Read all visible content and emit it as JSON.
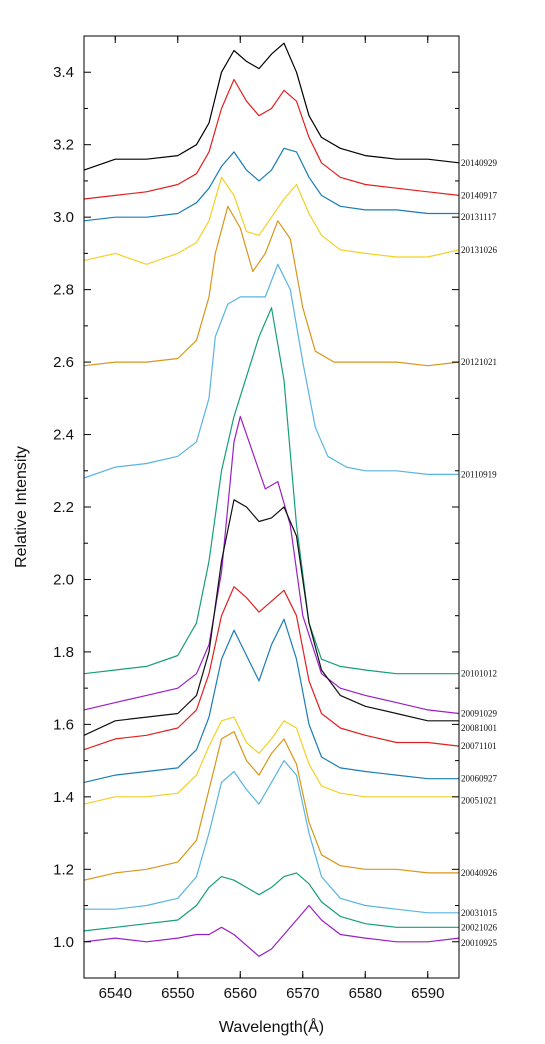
{
  "chart_data": {
    "type": "line",
    "title": "",
    "xlabel": "Wavelength(Å)",
    "ylabel": "Relative Intensity",
    "xlim": [
      6535,
      6595
    ],
    "ylim": [
      0.9,
      3.5
    ],
    "xticks": [
      6540,
      6550,
      6560,
      6570,
      6580,
      6590
    ],
    "yticks": [
      1.0,
      1.2,
      1.4,
      1.6,
      1.8,
      2.0,
      2.2,
      2.4,
      2.6,
      2.8,
      3.0,
      3.2,
      3.4
    ],
    "xtick_labels": [
      "6540",
      "6550",
      "6560",
      "6570",
      "6580",
      "6590"
    ],
    "ytick_labels": [
      "1.0",
      "1.2",
      "1.4",
      "1.6",
      "1.8",
      "2.0",
      "2.2",
      "2.4",
      "2.6",
      "2.8",
      "3.0",
      "3.2",
      "3.4"
    ],
    "grid": false,
    "legend": "none (series labelled at right edge)",
    "series": [
      {
        "name": "20140929",
        "color": "#000000",
        "labelY": 3.15,
        "x": [
          6535,
          6540,
          6545,
          6550,
          6553,
          6555,
          6557,
          6559,
          6561,
          6563,
          6565,
          6567,
          6569,
          6571,
          6573,
          6576,
          6580,
          6585,
          6590,
          6595
        ],
        "y": [
          3.13,
          3.16,
          3.16,
          3.17,
          3.2,
          3.26,
          3.4,
          3.46,
          3.43,
          3.41,
          3.45,
          3.48,
          3.4,
          3.28,
          3.22,
          3.19,
          3.17,
          3.16,
          3.16,
          3.15
        ]
      },
      {
        "name": "20140917",
        "color": "#e02020",
        "labelY": 3.06,
        "x": [
          6535,
          6540,
          6545,
          6550,
          6553,
          6555,
          6557,
          6559,
          6561,
          6563,
          6565,
          6567,
          6569,
          6571,
          6573,
          6576,
          6580,
          6585,
          6590,
          6595
        ],
        "y": [
          3.05,
          3.06,
          3.07,
          3.09,
          3.12,
          3.18,
          3.3,
          3.38,
          3.32,
          3.28,
          3.3,
          3.35,
          3.32,
          3.22,
          3.15,
          3.11,
          3.09,
          3.08,
          3.07,
          3.06
        ]
      },
      {
        "name": "20131117",
        "color": "#1a7db5",
        "labelY": 3.0,
        "x": [
          6535,
          6540,
          6545,
          6550,
          6553,
          6555,
          6557,
          6559,
          6561,
          6563,
          6565,
          6567,
          6569,
          6571,
          6573,
          6576,
          6580,
          6585,
          6590,
          6595
        ],
        "y": [
          2.99,
          3.0,
          3.0,
          3.01,
          3.04,
          3.08,
          3.14,
          3.18,
          3.13,
          3.1,
          3.13,
          3.19,
          3.18,
          3.11,
          3.06,
          3.03,
          3.02,
          3.02,
          3.01,
          3.01
        ]
      },
      {
        "name": "20131026",
        "color": "#f2d024",
        "labelY": 2.91,
        "x": [
          6535,
          6540,
          6545,
          6550,
          6553,
          6555,
          6557,
          6559,
          6561,
          6563,
          6565,
          6567,
          6569,
          6571,
          6573,
          6576,
          6580,
          6585,
          6590,
          6595
        ],
        "y": [
          2.88,
          2.9,
          2.87,
          2.9,
          2.93,
          2.99,
          3.11,
          3.06,
          2.96,
          2.95,
          3.0,
          3.05,
          3.09,
          3.01,
          2.95,
          2.91,
          2.9,
          2.89,
          2.89,
          2.91
        ]
      },
      {
        "name": "20121021",
        "color": "#d9961a",
        "labelY": 2.6,
        "x": [
          6535,
          6540,
          6545,
          6550,
          6553,
          6555,
          6556,
          6558,
          6560,
          6562,
          6564,
          6566,
          6568,
          6570,
          6572,
          6575,
          6580,
          6585,
          6590,
          6595
        ],
        "y": [
          2.59,
          2.6,
          2.6,
          2.61,
          2.66,
          2.78,
          2.9,
          3.03,
          2.97,
          2.85,
          2.9,
          2.99,
          2.94,
          2.75,
          2.63,
          2.6,
          2.6,
          2.6,
          2.59,
          2.6
        ]
      },
      {
        "name": "20110919",
        "color": "#5ab4e0",
        "labelY": 2.29,
        "x": [
          6535,
          6540,
          6545,
          6550,
          6553,
          6555,
          6556,
          6558,
          6560,
          6562,
          6564,
          6566,
          6568,
          6570,
          6572,
          6574,
          6577,
          6580,
          6585,
          6590,
          6595
        ],
        "y": [
          2.28,
          2.31,
          2.32,
          2.34,
          2.38,
          2.5,
          2.67,
          2.76,
          2.78,
          2.78,
          2.78,
          2.87,
          2.8,
          2.6,
          2.42,
          2.34,
          2.31,
          2.3,
          2.3,
          2.29,
          2.29
        ]
      },
      {
        "name": "20101012",
        "color": "#169e7a",
        "labelY": 1.74,
        "x": [
          6535,
          6540,
          6545,
          6550,
          6553,
          6555,
          6557,
          6559,
          6561,
          6563,
          6565,
          6567,
          6569,
          6571,
          6573,
          6576,
          6580,
          6585,
          6590,
          6595
        ],
        "y": [
          1.74,
          1.75,
          1.76,
          1.79,
          1.88,
          2.05,
          2.3,
          2.45,
          2.56,
          2.67,
          2.75,
          2.55,
          2.15,
          1.88,
          1.78,
          1.76,
          1.75,
          1.74,
          1.74,
          1.74
        ]
      },
      {
        "name": "20091029",
        "color": "#9b1fc4",
        "labelY": 1.63,
        "x": [
          6535,
          6540,
          6545,
          6550,
          6553,
          6555,
          6557,
          6558,
          6559,
          6560,
          6562,
          6564,
          6566,
          6568,
          6570,
          6573,
          6576,
          6580,
          6585,
          6590,
          6595
        ],
        "y": [
          1.64,
          1.66,
          1.68,
          1.7,
          1.74,
          1.82,
          2.02,
          2.2,
          2.38,
          2.45,
          2.35,
          2.25,
          2.27,
          2.15,
          1.9,
          1.74,
          1.7,
          1.68,
          1.66,
          1.64,
          1.63
        ]
      },
      {
        "name": "20081001",
        "color": "#111111",
        "labelY": 1.59,
        "x": [
          6535,
          6540,
          6545,
          6550,
          6553,
          6555,
          6557,
          6559,
          6561,
          6563,
          6565,
          6567,
          6569,
          6571,
          6573,
          6576,
          6580,
          6585,
          6590,
          6595
        ],
        "y": [
          1.57,
          1.61,
          1.62,
          1.63,
          1.68,
          1.8,
          2.05,
          2.22,
          2.2,
          2.16,
          2.17,
          2.2,
          2.12,
          1.88,
          1.75,
          1.68,
          1.65,
          1.63,
          1.61,
          1.61
        ]
      },
      {
        "name": "20071101",
        "color": "#e02020",
        "labelY": 1.54,
        "x": [
          6535,
          6540,
          6545,
          6550,
          6553,
          6555,
          6557,
          6559,
          6561,
          6563,
          6565,
          6567,
          6569,
          6571,
          6573,
          6576,
          6580,
          6585,
          6590,
          6595
        ],
        "y": [
          1.53,
          1.56,
          1.57,
          1.59,
          1.64,
          1.74,
          1.9,
          1.98,
          1.95,
          1.91,
          1.94,
          1.97,
          1.9,
          1.72,
          1.63,
          1.59,
          1.57,
          1.55,
          1.55,
          1.54
        ]
      },
      {
        "name": "20060927",
        "color": "#1a7db5",
        "labelY": 1.45,
        "x": [
          6535,
          6540,
          6545,
          6550,
          6553,
          6555,
          6557,
          6559,
          6561,
          6563,
          6565,
          6567,
          6569,
          6571,
          6573,
          6576,
          6580,
          6585,
          6590,
          6595
        ],
        "y": [
          1.44,
          1.46,
          1.47,
          1.48,
          1.53,
          1.62,
          1.78,
          1.86,
          1.79,
          1.72,
          1.82,
          1.89,
          1.78,
          1.6,
          1.51,
          1.48,
          1.47,
          1.46,
          1.45,
          1.45
        ]
      },
      {
        "name": "20051021",
        "color": "#f2d024",
        "labelY": 1.39,
        "x": [
          6535,
          6540,
          6545,
          6550,
          6553,
          6555,
          6557,
          6559,
          6561,
          6563,
          6565,
          6567,
          6569,
          6571,
          6573,
          6576,
          6580,
          6585,
          6590,
          6595
        ],
        "y": [
          1.38,
          1.4,
          1.4,
          1.41,
          1.46,
          1.54,
          1.61,
          1.62,
          1.55,
          1.52,
          1.56,
          1.61,
          1.59,
          1.49,
          1.43,
          1.41,
          1.4,
          1.4,
          1.4,
          1.4
        ]
      },
      {
        "name": "20040926",
        "color": "#d9961a",
        "labelY": 1.19,
        "x": [
          6535,
          6540,
          6545,
          6550,
          6553,
          6555,
          6557,
          6559,
          6561,
          6563,
          6565,
          6567,
          6569,
          6571,
          6573,
          6576,
          6580,
          6585,
          6590,
          6595
        ],
        "y": [
          1.17,
          1.19,
          1.2,
          1.22,
          1.28,
          1.42,
          1.56,
          1.58,
          1.5,
          1.46,
          1.52,
          1.56,
          1.49,
          1.33,
          1.24,
          1.21,
          1.2,
          1.2,
          1.19,
          1.19
        ]
      },
      {
        "name": "20031015",
        "color": "#5ab4e0",
        "labelY": 1.08,
        "x": [
          6535,
          6540,
          6545,
          6550,
          6553,
          6555,
          6557,
          6559,
          6561,
          6563,
          6565,
          6567,
          6569,
          6571,
          6573,
          6576,
          6580,
          6585,
          6590,
          6595
        ],
        "y": [
          1.09,
          1.09,
          1.1,
          1.12,
          1.18,
          1.3,
          1.44,
          1.47,
          1.42,
          1.38,
          1.44,
          1.5,
          1.46,
          1.3,
          1.18,
          1.12,
          1.1,
          1.09,
          1.08,
          1.08
        ]
      },
      {
        "name": "20021026",
        "color": "#169e7a",
        "labelY": 1.04,
        "x": [
          6535,
          6540,
          6545,
          6550,
          6553,
          6555,
          6557,
          6559,
          6561,
          6563,
          6565,
          6567,
          6569,
          6571,
          6573,
          6576,
          6580,
          6585,
          6590,
          6595
        ],
        "y": [
          1.03,
          1.04,
          1.05,
          1.06,
          1.1,
          1.15,
          1.18,
          1.17,
          1.15,
          1.13,
          1.15,
          1.18,
          1.19,
          1.16,
          1.11,
          1.07,
          1.05,
          1.04,
          1.04,
          1.04
        ]
      },
      {
        "name": "20010925",
        "color": "#9b1fc4",
        "labelY": 0.997,
        "x": [
          6535,
          6540,
          6545,
          6550,
          6553,
          6555,
          6557,
          6559,
          6561,
          6563,
          6565,
          6567,
          6569,
          6571,
          6573,
          6576,
          6580,
          6585,
          6590,
          6595
        ],
        "y": [
          1.0,
          1.01,
          1.0,
          1.01,
          1.02,
          1.02,
          1.04,
          1.02,
          0.99,
          0.96,
          0.98,
          1.02,
          1.06,
          1.1,
          1.06,
          1.02,
          1.01,
          1.0,
          1.0,
          1.01
        ]
      }
    ]
  }
}
